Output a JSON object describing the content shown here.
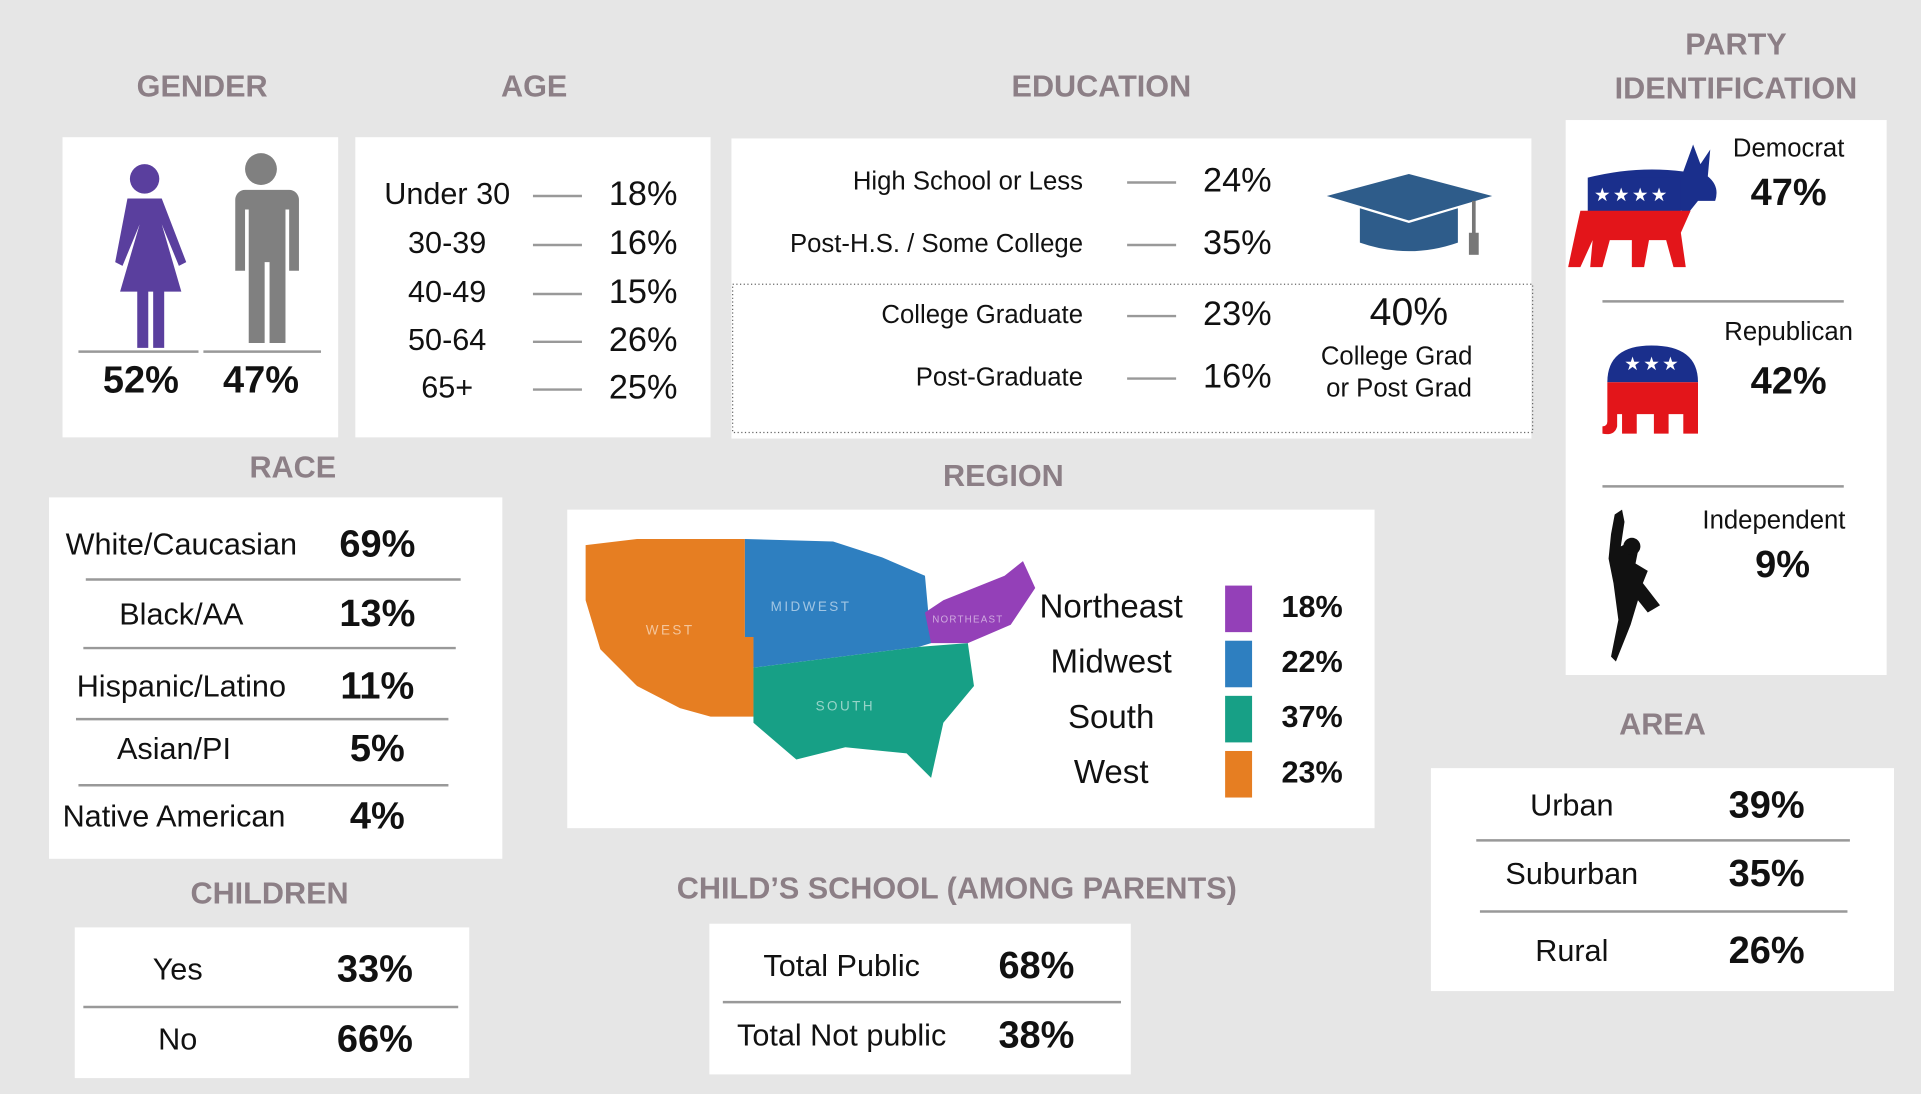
{
  "gender": {
    "title": "GENDER",
    "values": [
      "52%",
      "47%"
    ]
  },
  "age": {
    "title": "AGE",
    "rows": [
      [
        "Under 30",
        "18%"
      ],
      [
        "30-39",
        "16%"
      ],
      [
        "40-49",
        "15%"
      ],
      [
        "50-64",
        "26%"
      ],
      [
        "65+",
        "25%"
      ]
    ]
  },
  "education": {
    "title": "EDUCATION",
    "rows": [
      [
        "High School or Less",
        "24%"
      ],
      [
        "Post-H.S. / Some College",
        "35%"
      ],
      [
        "College Graduate",
        "23%"
      ],
      [
        "Post-Graduate",
        "16%"
      ]
    ],
    "combined": {
      "value": "40%",
      "line1": "College Grad",
      "line2": "or Post Grad"
    }
  },
  "party": {
    "title": [
      "PARTY",
      "IDENTIFICATION"
    ],
    "rows": [
      [
        "Democrat",
        "47%"
      ],
      [
        "Republican",
        "42%"
      ],
      [
        "Independent",
        "9%"
      ]
    ]
  },
  "race": {
    "title": "RACE",
    "rows": [
      [
        "White/Caucasian",
        "69%"
      ],
      [
        "Black/AA",
        "13%"
      ],
      [
        "Hispanic/Latino",
        "11%"
      ],
      [
        "Asian/PI",
        "5%"
      ],
      [
        "Native American",
        "4%"
      ]
    ]
  },
  "region": {
    "title": "REGION",
    "rows": [
      {
        "name": "Northeast",
        "value": "18%",
        "color": "#9440b8"
      },
      {
        "name": "Midwest",
        "value": "22%",
        "color": "#2e7fc0"
      },
      {
        "name": "South",
        "value": "37%",
        "color": "#17a086"
      },
      {
        "name": "West",
        "value": "23%",
        "color": "#e67e22"
      }
    ],
    "map_labels": [
      "NORTHEAST",
      "MIDWEST",
      "SOUTH",
      "WEST"
    ]
  },
  "area": {
    "title": "AREA",
    "rows": [
      [
        "Urban",
        "39%"
      ],
      [
        "Suburban",
        "35%"
      ],
      [
        "Rural",
        "26%"
      ]
    ]
  },
  "children": {
    "title": "CHILDREN",
    "rows": [
      [
        "Yes",
        "33%"
      ],
      [
        "No",
        "66%"
      ]
    ]
  },
  "school": {
    "title": "CHILD’S SCHOOL (AMONG PARENTS)",
    "rows": [
      [
        "Total Public",
        "68%"
      ],
      [
        "Total Not public",
        "38%"
      ]
    ]
  }
}
